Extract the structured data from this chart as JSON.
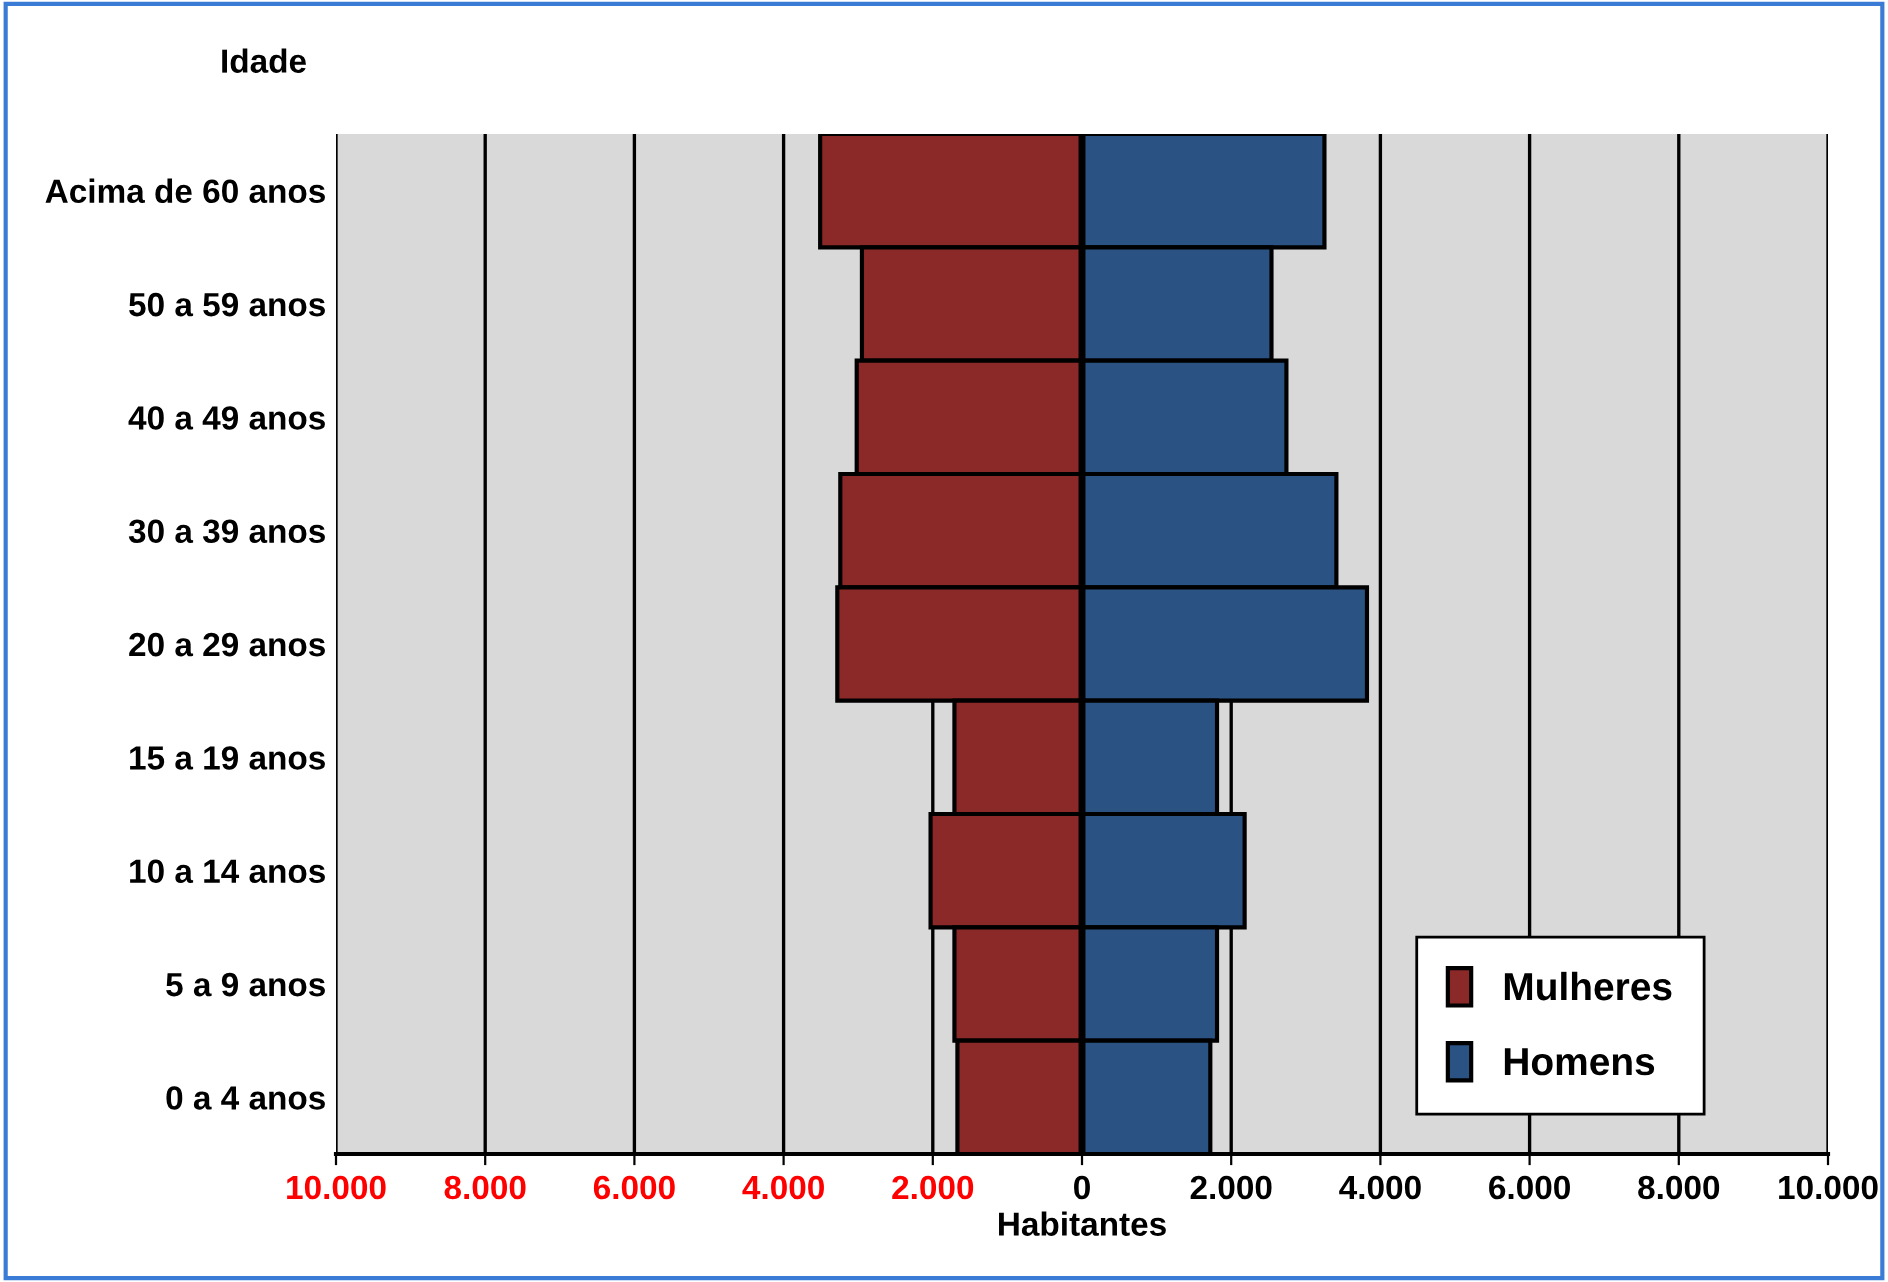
{
  "chart_data": {
    "type": "bar",
    "orientation": "horizontal",
    "stacked": true,
    "ylabel": "Idade",
    "xlabel": "Habitantes",
    "categories": [
      "Acima de 60 anos",
      "50 a 59 anos",
      "40 a 49 anos",
      "30 a 39 anos",
      "20 a 29 anos",
      "15 a 19 anos",
      "10 a 14 anos",
      "5 a 9 anos",
      "0 a 4 anos"
    ],
    "series": [
      {
        "name": "Mulheres",
        "color": "#8b2828",
        "values": [
          -3510,
          -2950,
          -3020,
          -3240,
          -3280,
          -1710,
          -2030,
          -1710,
          -1670
        ]
      },
      {
        "name": "Homens",
        "color": "#2a5283",
        "values": [
          3250,
          2540,
          2740,
          3410,
          3820,
          1810,
          2180,
          1810,
          1720
        ]
      }
    ],
    "xlim": [
      -10000,
      10000
    ],
    "xticks": [
      {
        "value": -10000,
        "label": "10.000"
      },
      {
        "value": -8000,
        "label": "8.000"
      },
      {
        "value": -6000,
        "label": "6.000"
      },
      {
        "value": -4000,
        "label": "4.000"
      },
      {
        "value": -2000,
        "label": "2.000"
      },
      0,
      {
        "value": 2000,
        "label": "2.000"
      },
      {
        "value": 4000,
        "label": "4.000"
      },
      {
        "value": 6000,
        "label": "6.000"
      },
      {
        "value": 8000,
        "label": "8.000"
      },
      {
        "value": 10000,
        "label": "10.000"
      }
    ],
    "grid": "x",
    "legend": "bottom right"
  }
}
